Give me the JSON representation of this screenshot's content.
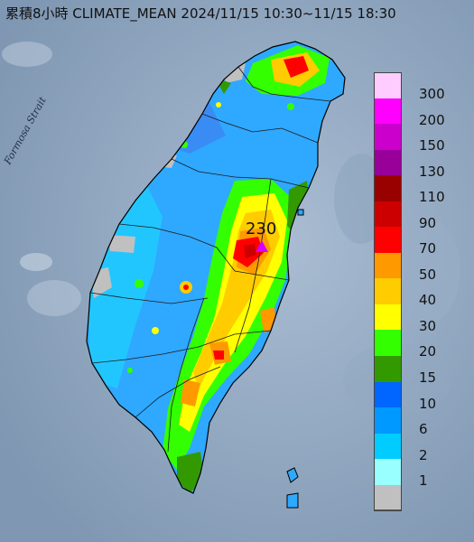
{
  "title": "累積8小時 CLIMATE_MEAN 2024/11/15 10:30~11/15 18:30",
  "map_labels": {
    "strait": "Formosa Strait"
  },
  "maximum": {
    "value": "230"
  },
  "legend": [
    {
      "label": "300",
      "color": "#ffccff"
    },
    {
      "label": "200",
      "color": "#ff00ff"
    },
    {
      "label": "150",
      "color": "#cc00cc"
    },
    {
      "label": "130",
      "color": "#990099"
    },
    {
      "label": "110",
      "color": "#990000"
    },
    {
      "label": "90",
      "color": "#cc0000"
    },
    {
      "label": "70",
      "color": "#ff0000"
    },
    {
      "label": "50",
      "color": "#ff9900"
    },
    {
      "label": "40",
      "color": "#ffcc00"
    },
    {
      "label": "30",
      "color": "#ffff00"
    },
    {
      "label": "20",
      "color": "#33ff00"
    },
    {
      "label": "15",
      "color": "#339900"
    },
    {
      "label": "10",
      "color": "#0066ff"
    },
    {
      "label": "6",
      "color": "#0099ff"
    },
    {
      "label": "2",
      "color": "#00ccff"
    },
    {
      "label": "1",
      "color": "#99ffff"
    },
    {
      "label": "",
      "color": "#c0c0c0"
    }
  ]
}
